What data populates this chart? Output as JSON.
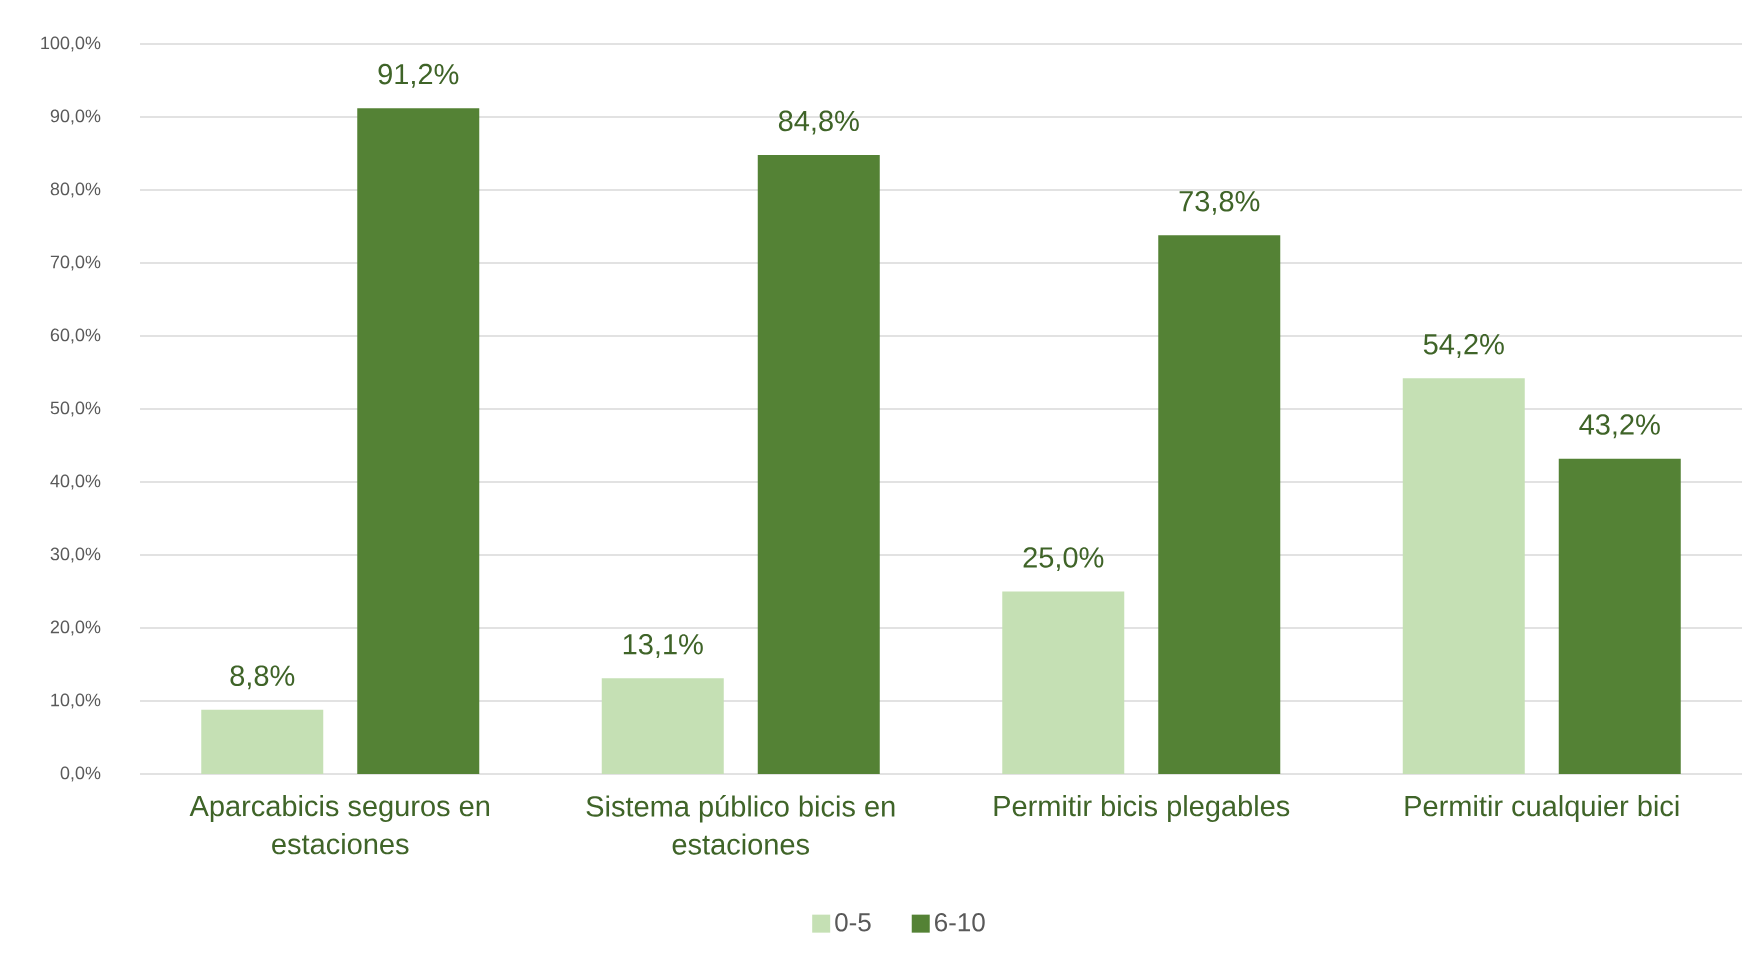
{
  "chart_data": {
    "type": "bar",
    "categories": [
      "Aparcabicis seguros en estaciones",
      "Sistema público bicis en estaciones",
      "Permitir bicis plegables",
      "Permitir cualquier bici"
    ],
    "series": [
      {
        "name": "0-5",
        "color": "#c5e0b4",
        "values": [
          8.8,
          13.1,
          25.0,
          54.2
        ],
        "value_labels": [
          "8,8%",
          "13,1%",
          "25,0%",
          "54,2%"
        ]
      },
      {
        "name": "6-10",
        "color": "#548235",
        "values": [
          91.2,
          84.8,
          73.8,
          43.2
        ],
        "value_labels": [
          "91,2%",
          "84,8%",
          "73,8%",
          "43,2%"
        ]
      }
    ],
    "ylim": [
      0,
      100
    ],
    "yticks": [
      {
        "value": 0,
        "label": "0,0%"
      },
      {
        "value": 10,
        "label": "10,0%"
      },
      {
        "value": 20,
        "label": "20,0%"
      },
      {
        "value": 30,
        "label": "30,0%"
      },
      {
        "value": 40,
        "label": "40,0%"
      },
      {
        "value": 50,
        "label": "50,0%"
      },
      {
        "value": 60,
        "label": "60,0%"
      },
      {
        "value": 70,
        "label": "70,0%"
      },
      {
        "value": 80,
        "label": "80,0%"
      },
      {
        "value": 90,
        "label": "90,0%"
      },
      {
        "value": 100,
        "label": "100,0%"
      }
    ],
    "grid": "y",
    "legend": "bottom"
  }
}
